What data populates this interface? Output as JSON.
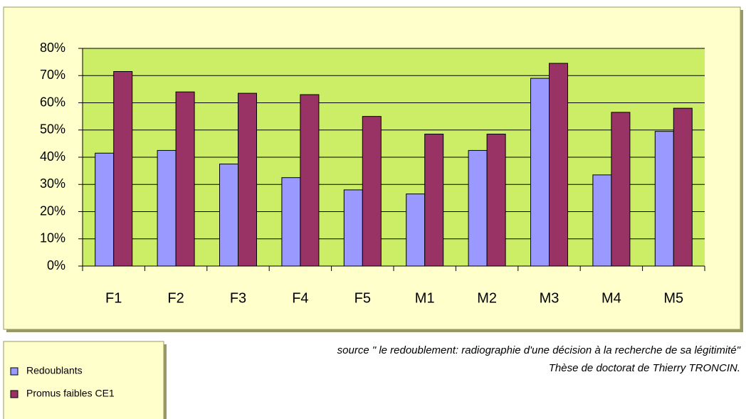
{
  "chart_data": {
    "type": "bar",
    "categories": [
      "F1",
      "F2",
      "F3",
      "F4",
      "F5",
      "M1",
      "M2",
      "M3",
      "M4",
      "M5"
    ],
    "series": [
      {
        "name": "Redoublants",
        "color": "#9999ff",
        "values": [
          41.5,
          42.5,
          37.5,
          32.5,
          28,
          26.5,
          42.5,
          69,
          33.5,
          49.5
        ]
      },
      {
        "name": "Promus faibles CE1",
        "color": "#993366",
        "values": [
          71.5,
          64,
          63.5,
          63,
          55,
          48.5,
          48.5,
          74.5,
          56.5,
          58
        ]
      }
    ],
    "ylim": [
      0,
      80
    ],
    "yticks": [
      {
        "value": 0,
        "label": "0%"
      },
      {
        "value": 10,
        "label": "10%"
      },
      {
        "value": 20,
        "label": "20%"
      },
      {
        "value": 30,
        "label": "30%"
      },
      {
        "value": 40,
        "label": "40%"
      },
      {
        "value": 50,
        "label": "50%"
      },
      {
        "value": 60,
        "label": "60%"
      },
      {
        "value": 70,
        "label": "70%"
      },
      {
        "value": 80,
        "label": "80%"
      }
    ],
    "grid": true,
    "legend": "bottom-left",
    "source": [
      "source \" le redoublement: radiographie d'une décision à la recherche de sa légitimité\"",
      "Thèse de doctorat de Thierry TRONCIN."
    ]
  }
}
